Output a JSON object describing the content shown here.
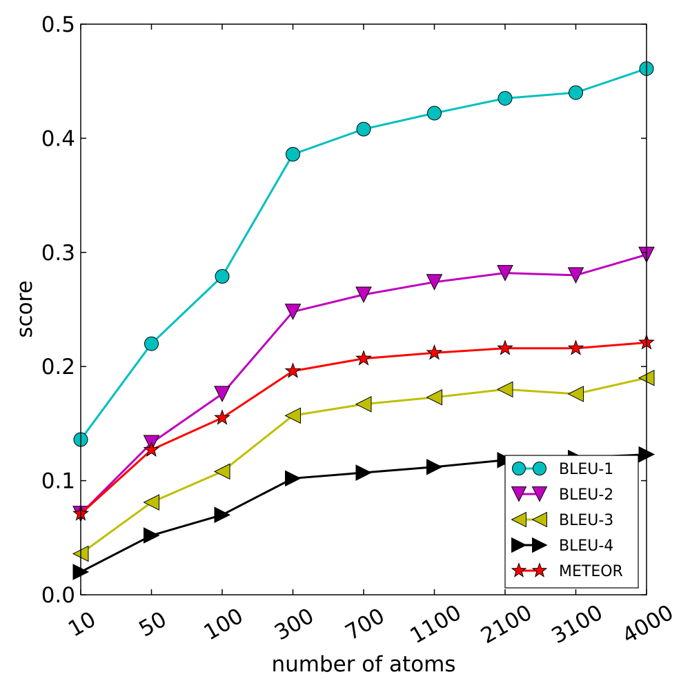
{
  "chart_data": {
    "type": "line",
    "title": "",
    "xlabel": "number of atoms",
    "ylabel": "score",
    "categories": [
      "10",
      "50",
      "100",
      "300",
      "700",
      "1100",
      "2100",
      "3100",
      "4000"
    ],
    "ylim": [
      0.0,
      0.5
    ],
    "yticks": [
      "0.0",
      "0.1",
      "0.2",
      "0.3",
      "0.4",
      "0.5"
    ],
    "grid": false,
    "legend_position": "lower-right",
    "series": [
      {
        "name": "BLEU-1",
        "color": "#00bfbf",
        "marker": "circle",
        "values": [
          0.136,
          0.22,
          0.279,
          0.386,
          0.408,
          0.422,
          0.435,
          0.44,
          0.461
        ]
      },
      {
        "name": "BLEU-2",
        "color": "#bf00bf",
        "marker": "triangle-down",
        "values": [
          0.071,
          0.133,
          0.176,
          0.248,
          0.263,
          0.274,
          0.282,
          0.28,
          0.298
        ]
      },
      {
        "name": "BLEU-3",
        "color": "#bfbf00",
        "marker": "triangle-left",
        "values": [
          0.036,
          0.081,
          0.108,
          0.157,
          0.167,
          0.173,
          0.18,
          0.176,
          0.19
        ]
      },
      {
        "name": "BLEU-4",
        "color": "#000000",
        "marker": "triangle-right",
        "values": [
          0.02,
          0.052,
          0.07,
          0.102,
          0.107,
          0.112,
          0.118,
          0.12,
          0.123
        ]
      },
      {
        "name": "METEOR",
        "color": "#ff0000",
        "marker": "star",
        "values": [
          0.071,
          0.127,
          0.155,
          0.196,
          0.207,
          0.212,
          0.216,
          0.216,
          0.221
        ]
      }
    ]
  }
}
